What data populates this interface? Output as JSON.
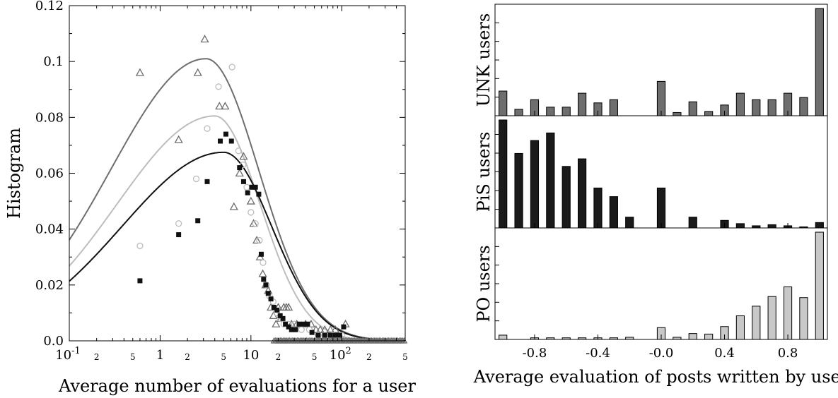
{
  "chart_data": [
    {
      "type": "scatter",
      "xlabel": "Average number of evaluations for a user",
      "ylabel": "Histogram",
      "xscale": "log",
      "xlim": [
        0.1,
        500
      ],
      "ylim": [
        0,
        0.12
      ],
      "x_major_ticks": [
        {
          "v": 0.1,
          "base": "10",
          "exp": "-1"
        },
        {
          "v": 1,
          "label": "1"
        },
        {
          "v": 10,
          "label": "10"
        },
        {
          "v": 100,
          "base": "10",
          "exp": "2"
        }
      ],
      "x_minor_ticks": [
        {
          "v": 0.2,
          "label": "2"
        },
        {
          "v": 0.5,
          "label": "5"
        },
        {
          "v": 2,
          "label": "2"
        },
        {
          "v": 5,
          "label": "5"
        },
        {
          "v": 20,
          "label": "2"
        },
        {
          "v": 50,
          "label": "5"
        },
        {
          "v": 200,
          "label": "2"
        },
        {
          "v": 500,
          "label": "5"
        }
      ],
      "y_ticks": [
        {
          "v": 0,
          "label": "0.0"
        },
        {
          "v": 0.02,
          "label": "0.02"
        },
        {
          "v": 0.04,
          "label": "0.04"
        },
        {
          "v": 0.06,
          "label": "0.06"
        },
        {
          "v": 0.08,
          "label": "0.08"
        },
        {
          "v": 0.1,
          "label": "0.1"
        },
        {
          "v": 0.12,
          "label": "0.12"
        }
      ],
      "series": [
        {
          "marker": "triangle",
          "color": "#6e6e6e",
          "points": [
            [
              0.6,
              0.096
            ],
            [
              1.6,
              0.072
            ],
            [
              2.6,
              0.096
            ],
            [
              3.1,
              0.108
            ],
            [
              4.5,
              0.084
            ],
            [
              5.2,
              0.084
            ],
            [
              6.5,
              0.048
            ],
            [
              7.5,
              0.06
            ],
            [
              8.3,
              0.066
            ],
            [
              10,
              0.05
            ],
            [
              10.7,
              0.042
            ],
            [
              11.6,
              0.036
            ],
            [
              12.6,
              0.03
            ],
            [
              13.5,
              0.024
            ],
            [
              14.5,
              0.02
            ],
            [
              15.5,
              0.018
            ],
            [
              16.6,
              0.012
            ],
            [
              17.7,
              0.009
            ],
            [
              18.9,
              0.006
            ],
            [
              20,
              0.012
            ],
            [
              21.5,
              0.008
            ],
            [
              23,
              0.012
            ],
            [
              24.5,
              0.012
            ],
            [
              26,
              0.012
            ],
            [
              28,
              0.006
            ],
            [
              32,
              0.006
            ],
            [
              40,
              0.006
            ],
            [
              46,
              0.006
            ],
            [
              52,
              0.004
            ],
            [
              58,
              0.004
            ],
            [
              65,
              0.004
            ],
            [
              75,
              0.004
            ],
            [
              85,
              0.004
            ],
            [
              110,
              0.006
            ]
          ],
          "curve": {
            "peak_x": 3.2,
            "peak_y": 0.101,
            "sigma_left": 1.05,
            "sigma_right": 0.58
          }
        },
        {
          "marker": "circle",
          "color": "#bdbdbd",
          "points": [
            [
              0.6,
              0.034
            ],
            [
              1.6,
              0.042
            ],
            [
              2.5,
              0.058
            ],
            [
              3.3,
              0.076
            ],
            [
              4.4,
              0.091
            ],
            [
              6.2,
              0.098
            ],
            [
              7.3,
              0.068
            ],
            [
              8.2,
              0.063
            ],
            [
              9,
              0.055
            ],
            [
              10,
              0.046
            ],
            [
              11.2,
              0.042
            ],
            [
              12.4,
              0.036
            ],
            [
              13.6,
              0.028
            ],
            [
              14.8,
              0.02
            ],
            [
              16,
              0.016
            ],
            [
              17.6,
              0.014
            ],
            [
              19.2,
              0.01
            ],
            [
              21,
              0.008
            ],
            [
              23,
              0.006
            ],
            [
              26,
              0.006
            ],
            [
              30,
              0.006
            ],
            [
              36,
              0.004
            ],
            [
              44,
              0.004
            ],
            [
              55,
              0.002
            ],
            [
              65,
              0.002
            ],
            [
              80,
              0.002
            ],
            [
              100,
              0.002
            ]
          ],
          "curve": {
            "peak_x": 4.0,
            "peak_y": 0.0805,
            "sigma_left": 1.08,
            "sigma_right": 0.5
          }
        },
        {
          "marker": "square",
          "color": "#111111",
          "points": [
            [
              0.6,
              0.0215
            ],
            [
              1.6,
              0.038
            ],
            [
              2.6,
              0.043
            ],
            [
              3.3,
              0.057
            ],
            [
              4.6,
              0.0715
            ],
            [
              5.3,
              0.074
            ],
            [
              6.1,
              0.0715
            ],
            [
              7.5,
              0.062
            ],
            [
              8.3,
              0.057
            ],
            [
              9.2,
              0.053
            ],
            [
              10.2,
              0.055
            ],
            [
              11.2,
              0.055
            ],
            [
              12.2,
              0.0525
            ],
            [
              13,
              0.031
            ],
            [
              13.8,
              0.022
            ],
            [
              14.6,
              0.02
            ],
            [
              15.5,
              0.017
            ],
            [
              16.6,
              0.015
            ],
            [
              17.9,
              0.012
            ],
            [
              19.4,
              0.011
            ],
            [
              21,
              0.009
            ],
            [
              22.5,
              0.008
            ],
            [
              24,
              0.006
            ],
            [
              26,
              0.005
            ],
            [
              28,
              0.004
            ],
            [
              31,
              0.004
            ],
            [
              34,
              0.006
            ],
            [
              38,
              0.006
            ],
            [
              42,
              0.006
            ],
            [
              47,
              0.003
            ],
            [
              55,
              0.002
            ],
            [
              65,
              0.002
            ],
            [
              75,
              0.002
            ],
            [
              85,
              0.002
            ],
            [
              95,
              0.002
            ],
            [
              105,
              0.005
            ]
          ],
          "curve": {
            "peak_x": 5.0,
            "peak_y": 0.0675,
            "sigma_left": 1.12,
            "sigma_right": 0.53
          }
        }
      ]
    },
    {
      "type": "bar",
      "xlabel": "Average evaluation of posts written by user",
      "xlim": [
        -1.05,
        1.05
      ],
      "x_ticks": [
        {
          "v": -0.8,
          "label": "-0.8"
        },
        {
          "v": -0.4,
          "label": "-0.4"
        },
        {
          "v": 0.0,
          "label": "-0.0"
        },
        {
          "v": 0.4,
          "label": "0.4"
        },
        {
          "v": 0.8,
          "label": "0.8"
        }
      ],
      "x": [
        -1.0,
        -0.9,
        -0.8,
        -0.7,
        -0.6,
        -0.5,
        -0.4,
        -0.3,
        -0.2,
        -0.1,
        0.0,
        0.1,
        0.2,
        0.3,
        0.4,
        0.5,
        0.6,
        0.7,
        0.8,
        0.9,
        1.0
      ],
      "panels": [
        {
          "label": "UNK users",
          "color": "#6e6e6e",
          "ymax": 1.0,
          "values": [
            0.23,
            0.06,
            0.15,
            0.08,
            0.08,
            0.21,
            0.12,
            0.15,
            0,
            0,
            0.32,
            0.03,
            0.13,
            0.04,
            0.1,
            0.21,
            0.15,
            0.15,
            0.21,
            0.17,
            1.0
          ]
        },
        {
          "label": "PiS users",
          "color": "#1a1a1a",
          "ymax": 1.0,
          "values": [
            1.0,
            0.69,
            0.81,
            0.88,
            0.57,
            0.64,
            0.37,
            0.29,
            0.1,
            0,
            0.37,
            0,
            0.1,
            0,
            0.07,
            0.04,
            0.02,
            0.03,
            0.02,
            0.01,
            0.05
          ]
        },
        {
          "label": "PO users",
          "color": "#c8c8c8",
          "ymax": 1.0,
          "values": [
            0.04,
            0,
            0.015,
            0.015,
            0.015,
            0.015,
            0.015,
            0.015,
            0.02,
            0,
            0.11,
            0.02,
            0.055,
            0.05,
            0.12,
            0.22,
            0.31,
            0.4,
            0.49,
            0.39,
            1.0
          ]
        }
      ]
    }
  ]
}
